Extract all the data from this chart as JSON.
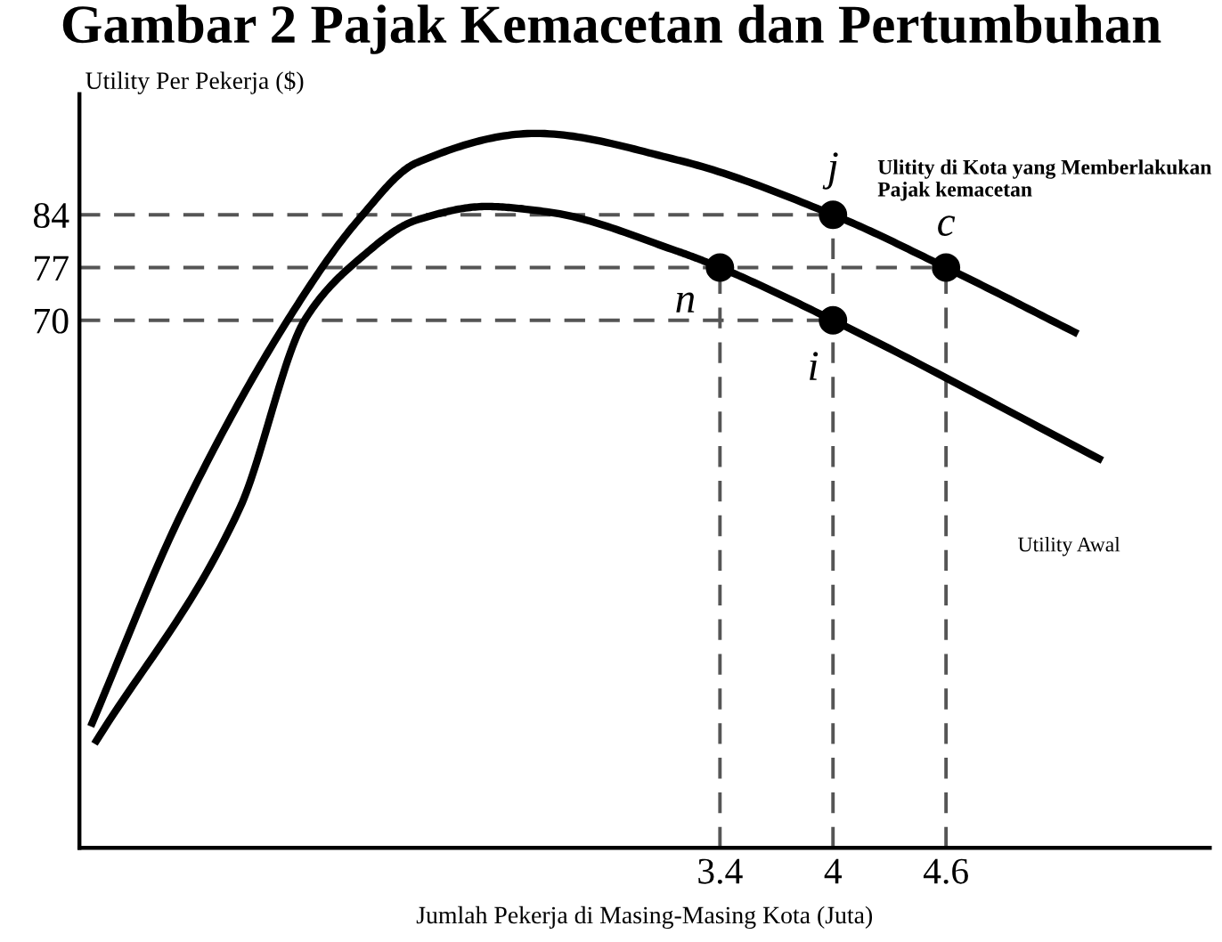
{
  "chart_data": {
    "type": "line",
    "title": "Gambar 2 Pajak Kemacetan dan Pertumbuhan",
    "xlabel": "Jumlah Pekerja di Masing-Masing Kota (Juta)",
    "ylabel": "Utility Per Pekerja ($)",
    "xlim": [
      0,
      6
    ],
    "ylim": [
      0,
      100
    ],
    "xticks": [
      3.4,
      4,
      4.6
    ],
    "yticks": [
      70,
      77,
      84
    ],
    "ref_lines": [
      {
        "axis": "y",
        "value": 84,
        "line_style": "dashed",
        "color": "#555555"
      },
      {
        "axis": "y",
        "value": 77,
        "line_style": "dashed",
        "color": "#555555"
      },
      {
        "axis": "y",
        "value": 70,
        "line_style": "dashed",
        "color": "#555555"
      },
      {
        "axis": "x",
        "value": 3.4,
        "line_style": "dashed",
        "color": "#555555"
      },
      {
        "axis": "x",
        "value": 4,
        "line_style": "dashed",
        "color": "#555555"
      },
      {
        "axis": "x",
        "value": 4.6,
        "line_style": "dashed",
        "color": "#555555"
      }
    ],
    "series": [
      {
        "color": "#000000",
        "x": [
          0.06,
          0.54,
          1.11,
          1.48,
          1.79,
          2.42,
          3.17,
          4.0,
          4.6,
          5.3
        ],
        "values": [
          16.1,
          44.3,
          70.2,
          83.3,
          90.9,
          94.8,
          91.3,
          84,
          77,
          68.2
        ]
      },
      {
        "color": "#000000",
        "x": [
          0.08,
          0.85,
          1.2,
          1.48,
          1.79,
          2.16,
          2.48,
          3.17,
          3.4,
          4.0,
          5.43
        ],
        "values": [
          13.8,
          45.0,
          70.2,
          78.0,
          83.3,
          85.1,
          84.4,
          79.2,
          77,
          70,
          51.4
        ]
      },
      {
        "type": "scatter",
        "color": "#000000",
        "marker": "circle",
        "x": [
          4.0,
          4.6,
          3.4,
          4.0
        ],
        "values": [
          84,
          77,
          77,
          70
        ]
      }
    ],
    "annotations": [
      {
        "text": "j",
        "x": 4.0,
        "y": 84
      },
      {
        "text": "c",
        "x": 4.6,
        "y": 77
      },
      {
        "text": "n",
        "x": 3.4,
        "y": 77
      },
      {
        "text": "i",
        "x": 4.0,
        "y": 70
      },
      {
        "text": "Ulitity di Kota yang Memberlakukan\nPajak kemacetan",
        "x": 4.0,
        "y": 84
      },
      "Utility Awal"
    ]
  }
}
